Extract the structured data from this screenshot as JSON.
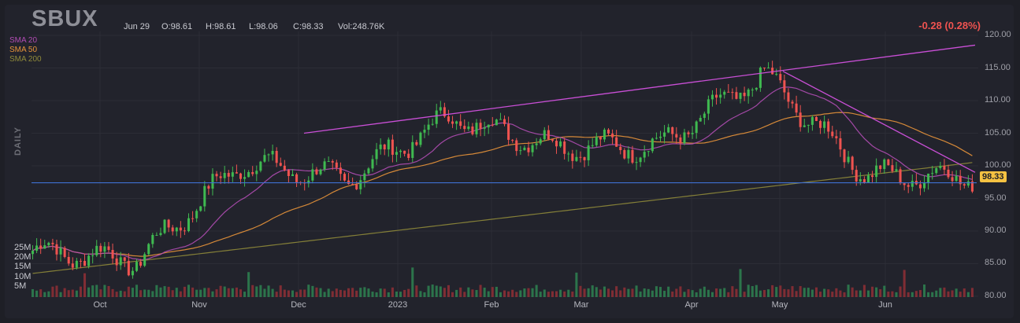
{
  "header": {
    "ticker": "SBUX",
    "date": "Jun 29",
    "open": "O:98.61",
    "high": "H:98.61",
    "low": "L:98.06",
    "close": "C:98.33",
    "volume": "Vol:248.76K",
    "change": "-0.28 (0.28%)"
  },
  "legend": [
    {
      "label": "SMA 20",
      "color": "#b04cb3"
    },
    {
      "label": "SMA 50",
      "color": "#e8943a"
    },
    {
      "label": "SMA 200",
      "color": "#8f8a3a"
    }
  ],
  "timeframe_label": "DAILY",
  "last_price_tag": "98.33",
  "chart_data": {
    "type": "candlestick",
    "price_axis_ticks": [
      "120.00",
      "115.00",
      "110.00",
      "105.00",
      "100.00",
      "95.00",
      "90.00",
      "85.00",
      "80.00"
    ],
    "volume_axis_ticks": [
      "25M",
      "20M",
      "15M",
      "10M",
      "5M"
    ],
    "x_axis_ticks": [
      "Oct",
      "Nov",
      "Dec",
      "2023",
      "Feb",
      "Mar",
      "Apr",
      "May",
      "Jun"
    ],
    "ylim": [
      80,
      120
    ],
    "approx_close_by_month": [
      {
        "month": "Sep 2022",
        "close": 87.0
      },
      {
        "month": "Oct 2022",
        "close": 85.5
      },
      {
        "month": "Nov 2022",
        "close": 100.5
      },
      {
        "month": "Dec 2022",
        "close": 98.0
      },
      {
        "month": "Jan 2023",
        "close": 107.5
      },
      {
        "month": "Feb 2023",
        "close": 103.0
      },
      {
        "month": "Mar 2023",
        "close": 103.0
      },
      {
        "month": "Apr 2023",
        "close": 114.0
      },
      {
        "month": "May 2023",
        "close": 98.5
      },
      {
        "month": "Jun 2023",
        "close": 98.33
      }
    ],
    "horizontal_level": 97.4,
    "trendlines": [
      {
        "from": [
          "Dec 2022",
          105.0
        ],
        "to": [
          "Jun 2023",
          118.5
        ]
      },
      {
        "from": [
          "May 2023",
          114.5
        ],
        "to": [
          "Jun 2023",
          99.0
        ]
      }
    ],
    "colors": {
      "up": "#26a69a",
      "up_candle": "#3fb950",
      "down": "#ef5350"
    }
  }
}
